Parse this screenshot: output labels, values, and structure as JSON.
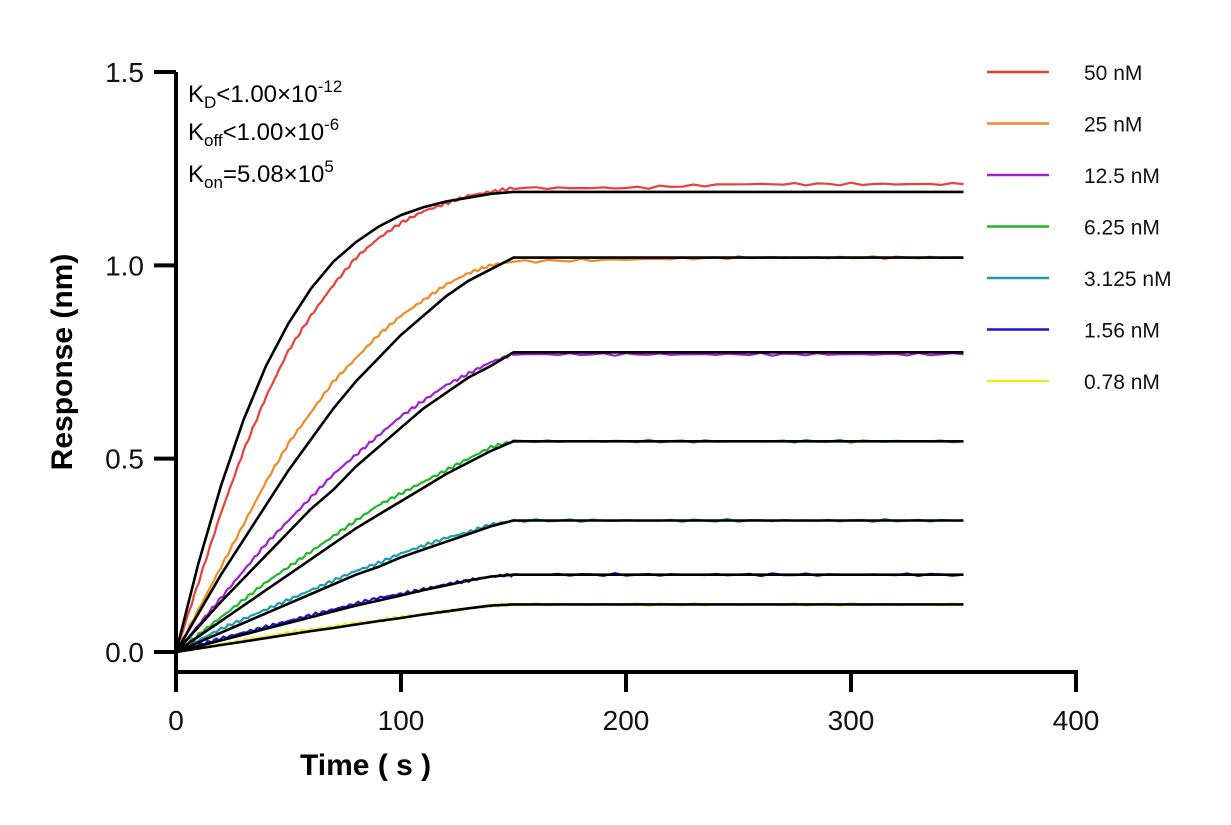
{
  "chart_data": {
    "type": "line",
    "xlabel": "Time ( s )",
    "ylabel": "Response (nm)",
    "xlim": [
      0,
      400
    ],
    "ylim": [
      0,
      1.5
    ],
    "x_ticks": [
      "0",
      "100",
      "200",
      "300",
      "400"
    ],
    "y_ticks": [
      "0.0",
      "0.5",
      "1.0",
      "1.5"
    ],
    "grid": false,
    "legend_position": "right",
    "annotations": {
      "kd": {
        "symbol": "K",
        "sub": "D",
        "rel": "<",
        "value": "1.00×10",
        "exp": "-12"
      },
      "koff": {
        "symbol": "K",
        "sub": "off",
        "rel": "<",
        "value": "1.00×10",
        "exp": "-6"
      },
      "kon": {
        "symbol": "K",
        "sub": "on",
        "rel": "=",
        "value": "5.08×10",
        "exp": "5"
      }
    },
    "association_end_s": 150,
    "end_s": 350,
    "series": [
      {
        "name": "50 nM",
        "color": "#e8403a",
        "x": [
          0,
          10,
          20,
          30,
          40,
          50,
          60,
          70,
          80,
          90,
          100,
          110,
          120,
          130,
          140,
          150,
          200,
          250,
          300,
          350
        ],
        "values": [
          0,
          0.18,
          0.36,
          0.52,
          0.66,
          0.78,
          0.87,
          0.95,
          1.02,
          1.07,
          1.11,
          1.14,
          1.16,
          1.18,
          1.19,
          1.2,
          1.2,
          1.21,
          1.21,
          1.21
        ]
      },
      {
        "name": "25 nM",
        "color": "#f38a22",
        "x": [
          0,
          10,
          20,
          30,
          40,
          50,
          60,
          70,
          80,
          90,
          100,
          110,
          120,
          130,
          140,
          150,
          200,
          250,
          300,
          350
        ],
        "values": [
          0,
          0.11,
          0.22,
          0.33,
          0.44,
          0.54,
          0.62,
          0.7,
          0.76,
          0.82,
          0.87,
          0.91,
          0.95,
          0.98,
          1.0,
          1.01,
          1.015,
          1.02,
          1.02,
          1.02
        ]
      },
      {
        "name": "12.5 nM",
        "color": "#a21ed3",
        "x": [
          0,
          10,
          20,
          30,
          40,
          50,
          60,
          70,
          80,
          90,
          100,
          110,
          120,
          130,
          140,
          150,
          200,
          250,
          300,
          350
        ],
        "values": [
          0,
          0.07,
          0.14,
          0.21,
          0.28,
          0.34,
          0.4,
          0.46,
          0.51,
          0.56,
          0.61,
          0.65,
          0.69,
          0.72,
          0.75,
          0.77,
          0.77,
          0.77,
          0.77,
          0.77
        ]
      },
      {
        "name": "6.25 nM",
        "color": "#21b72a",
        "x": [
          0,
          10,
          20,
          30,
          40,
          50,
          60,
          70,
          80,
          90,
          100,
          110,
          120,
          130,
          140,
          150,
          200,
          250,
          300,
          350
        ],
        "values": [
          0,
          0.045,
          0.09,
          0.135,
          0.18,
          0.22,
          0.26,
          0.3,
          0.34,
          0.38,
          0.41,
          0.44,
          0.47,
          0.5,
          0.53,
          0.545,
          0.545,
          0.545,
          0.545,
          0.545
        ]
      },
      {
        "name": "3.125 nM",
        "color": "#1e9cb0",
        "x": [
          0,
          10,
          20,
          30,
          40,
          50,
          60,
          70,
          80,
          90,
          100,
          110,
          120,
          130,
          140,
          150,
          200,
          250,
          300,
          350
        ],
        "values": [
          0,
          0.03,
          0.06,
          0.085,
          0.11,
          0.135,
          0.16,
          0.185,
          0.21,
          0.23,
          0.255,
          0.275,
          0.295,
          0.31,
          0.33,
          0.34,
          0.34,
          0.34,
          0.34,
          0.34
        ]
      },
      {
        "name": "1.56 nM",
        "color": "#1a17c9",
        "x": [
          0,
          10,
          20,
          30,
          40,
          50,
          60,
          70,
          80,
          90,
          100,
          110,
          120,
          130,
          140,
          150,
          200,
          250,
          300,
          350
        ],
        "values": [
          0,
          0.018,
          0.035,
          0.05,
          0.065,
          0.08,
          0.095,
          0.11,
          0.125,
          0.14,
          0.15,
          0.162,
          0.175,
          0.185,
          0.195,
          0.2,
          0.2,
          0.2,
          0.2,
          0.2
        ]
      },
      {
        "name": "0.78 nM",
        "color": "#f2ea1c",
        "x": [
          0,
          10,
          20,
          30,
          40,
          50,
          60,
          70,
          80,
          90,
          100,
          110,
          120,
          130,
          140,
          150,
          200,
          250,
          300,
          350
        ],
        "values": [
          0,
          0.01,
          0.02,
          0.03,
          0.04,
          0.05,
          0.058,
          0.066,
          0.074,
          0.082,
          0.09,
          0.098,
          0.105,
          0.112,
          0.12,
          0.123,
          0.123,
          0.123,
          0.123,
          0.123
        ]
      }
    ],
    "fits": [
      {
        "color": "#000000",
        "x": [
          0,
          10,
          20,
          30,
          40,
          50,
          60,
          70,
          80,
          90,
          100,
          110,
          120,
          130,
          140,
          150,
          350
        ],
        "values": [
          0,
          0.23,
          0.43,
          0.6,
          0.74,
          0.85,
          0.94,
          1.01,
          1.06,
          1.1,
          1.13,
          1.15,
          1.165,
          1.175,
          1.185,
          1.19,
          1.19
        ]
      },
      {
        "color": "#000000",
        "x": [
          0,
          10,
          20,
          30,
          40,
          50,
          60,
          70,
          80,
          90,
          100,
          110,
          120,
          130,
          140,
          150,
          350
        ],
        "values": [
          0,
          0.1,
          0.2,
          0.29,
          0.38,
          0.47,
          0.55,
          0.63,
          0.7,
          0.76,
          0.82,
          0.87,
          0.92,
          0.96,
          0.99,
          1.02,
          1.02
        ]
      },
      {
        "color": "#000000",
        "x": [
          0,
          10,
          20,
          30,
          40,
          50,
          60,
          70,
          80,
          90,
          100,
          110,
          120,
          130,
          140,
          150,
          350
        ],
        "values": [
          0,
          0.065,
          0.13,
          0.19,
          0.25,
          0.31,
          0.37,
          0.42,
          0.48,
          0.53,
          0.58,
          0.63,
          0.67,
          0.71,
          0.74,
          0.775,
          0.775
        ]
      },
      {
        "color": "#000000",
        "x": [
          0,
          10,
          20,
          30,
          40,
          50,
          60,
          70,
          80,
          90,
          100,
          110,
          120,
          130,
          140,
          150,
          350
        ],
        "values": [
          0,
          0.04,
          0.08,
          0.12,
          0.16,
          0.2,
          0.24,
          0.28,
          0.32,
          0.355,
          0.39,
          0.425,
          0.46,
          0.49,
          0.52,
          0.545,
          0.545
        ]
      },
      {
        "color": "#000000",
        "x": [
          0,
          10,
          20,
          30,
          40,
          50,
          60,
          70,
          80,
          90,
          100,
          110,
          120,
          130,
          140,
          150,
          350
        ],
        "values": [
          0,
          0.025,
          0.05,
          0.075,
          0.1,
          0.125,
          0.15,
          0.175,
          0.2,
          0.22,
          0.245,
          0.265,
          0.285,
          0.305,
          0.325,
          0.34,
          0.34
        ]
      },
      {
        "color": "#000000",
        "x": [
          0,
          10,
          20,
          30,
          40,
          50,
          60,
          70,
          80,
          90,
          100,
          110,
          120,
          130,
          140,
          150,
          350
        ],
        "values": [
          0,
          0.015,
          0.03,
          0.045,
          0.06,
          0.075,
          0.09,
          0.105,
          0.12,
          0.133,
          0.146,
          0.16,
          0.172,
          0.185,
          0.195,
          0.2,
          0.2
        ]
      },
      {
        "color": "#000000",
        "x": [
          0,
          10,
          20,
          30,
          40,
          50,
          60,
          70,
          80,
          90,
          100,
          110,
          120,
          130,
          140,
          150,
          350
        ],
        "values": [
          0,
          0.009,
          0.018,
          0.027,
          0.036,
          0.045,
          0.054,
          0.062,
          0.071,
          0.08,
          0.088,
          0.097,
          0.105,
          0.113,
          0.12,
          0.123,
          0.123
        ]
      }
    ]
  }
}
